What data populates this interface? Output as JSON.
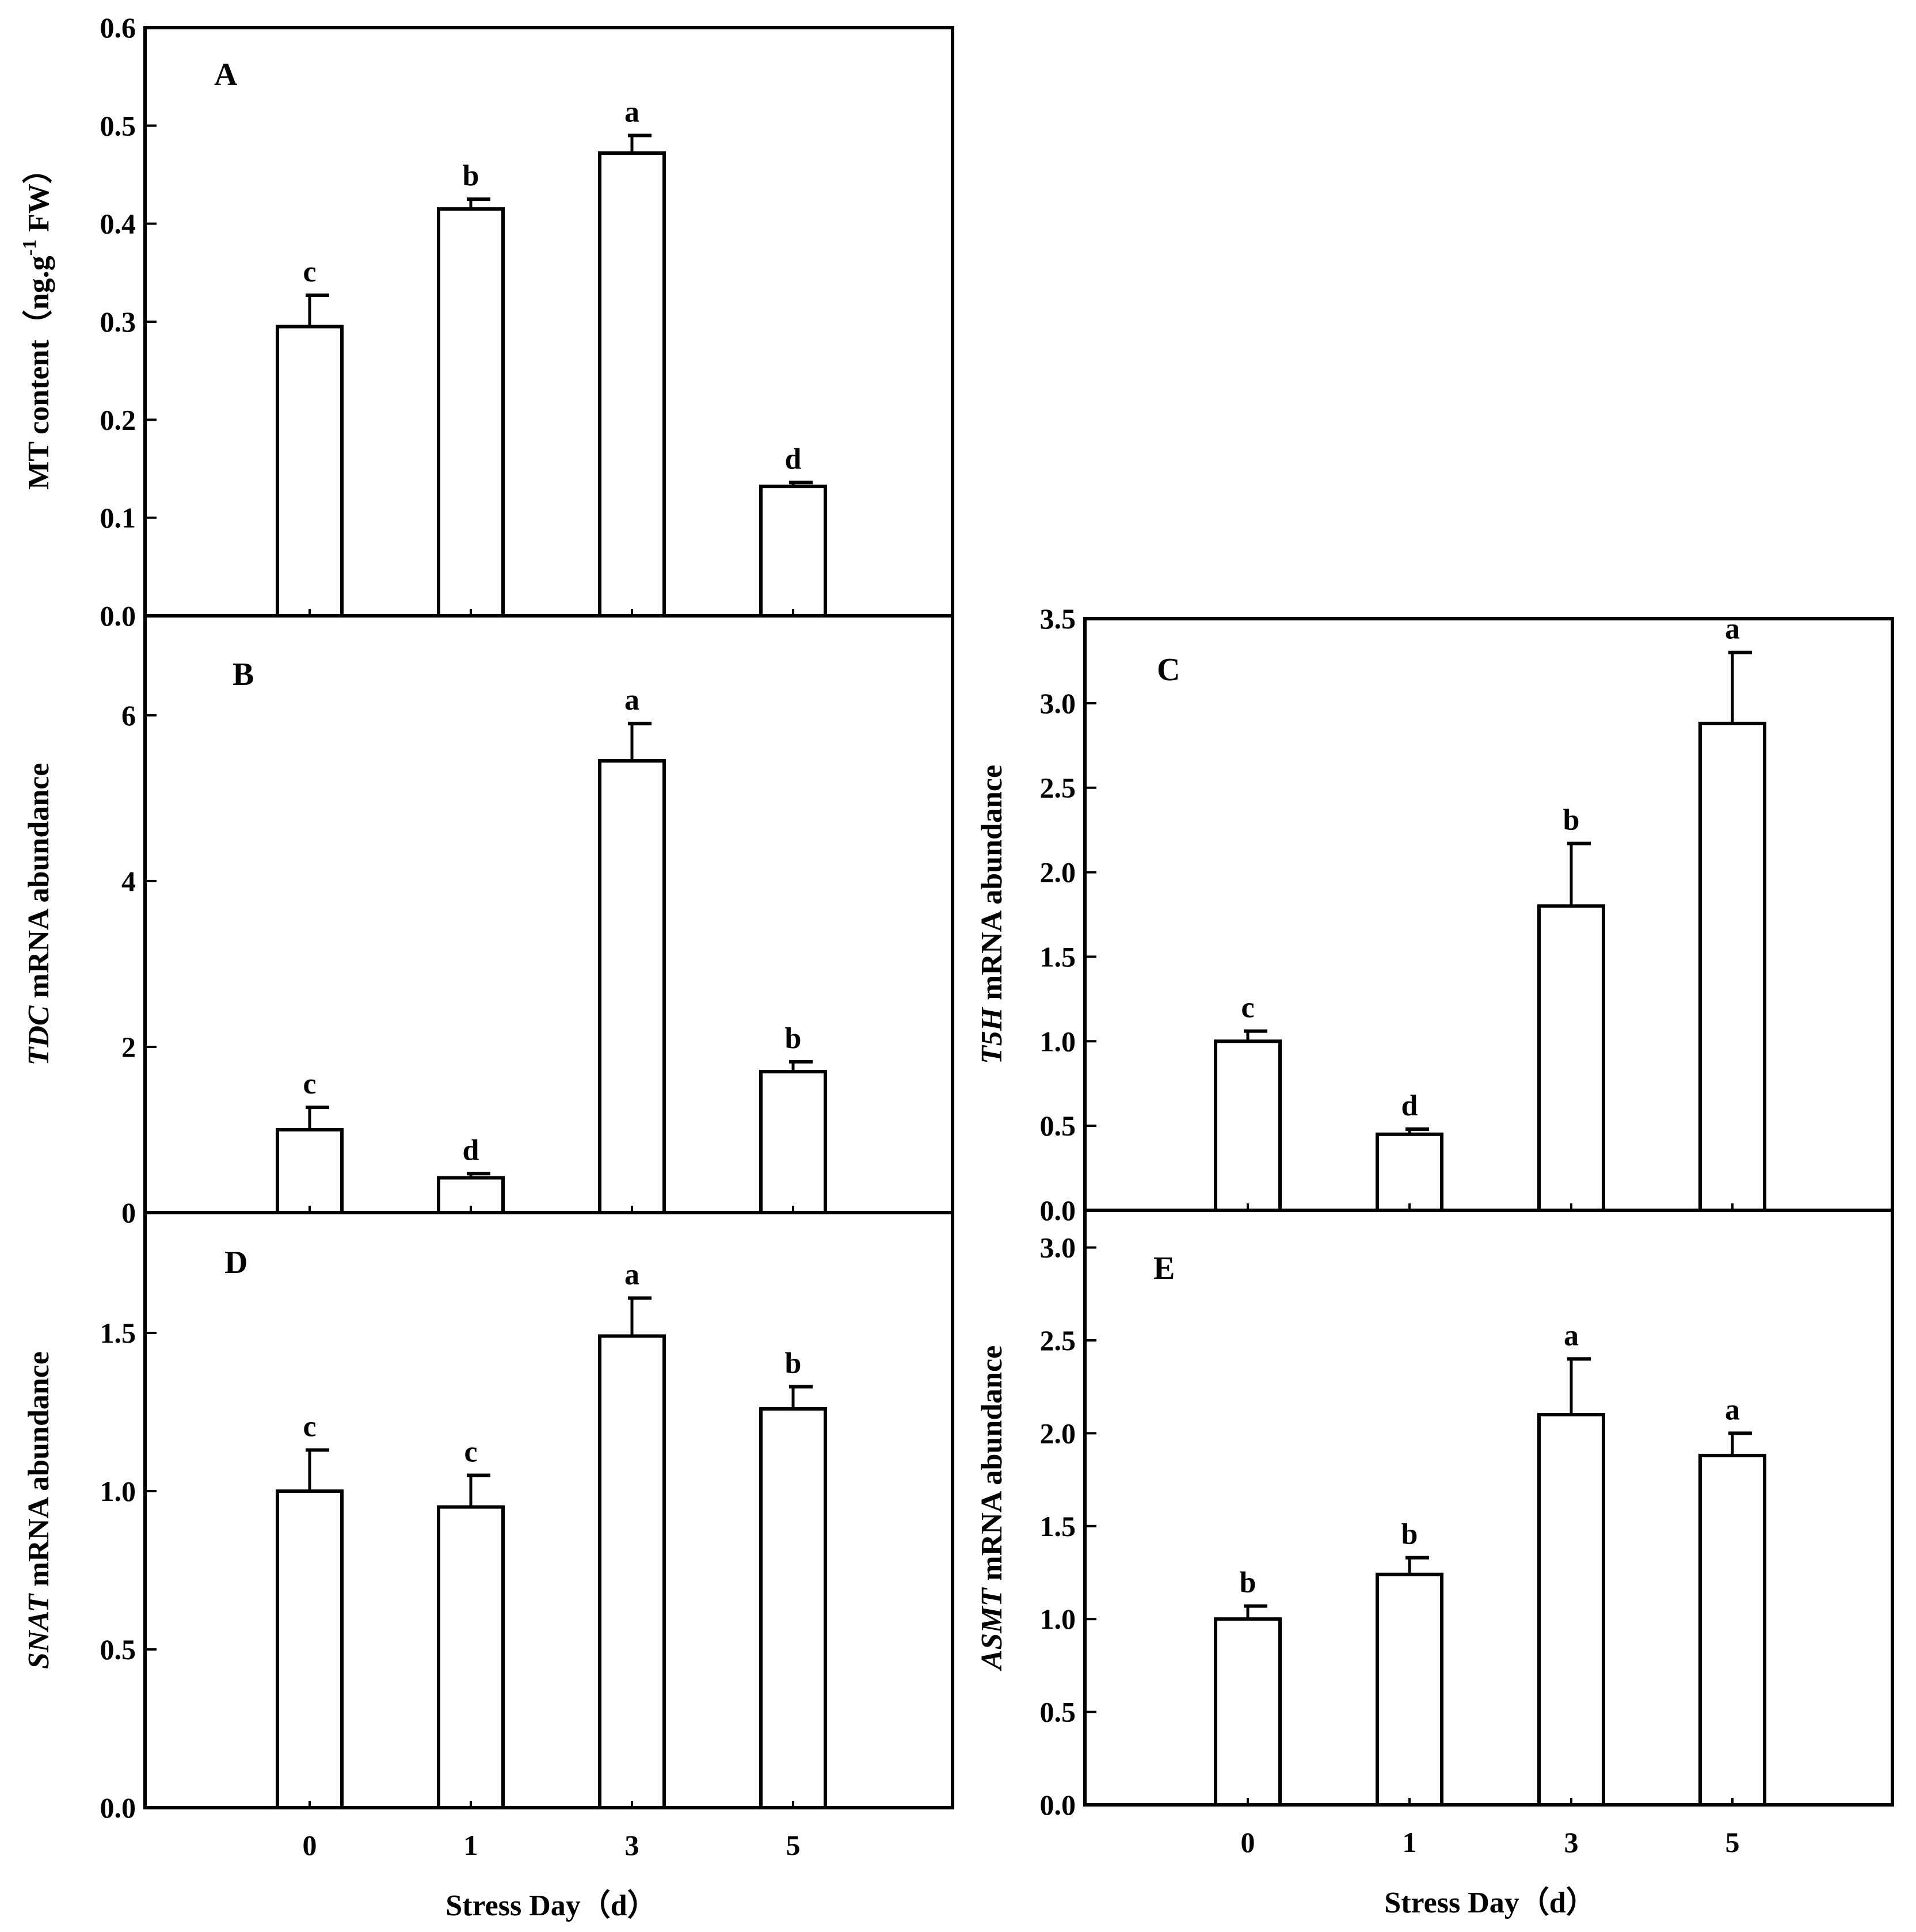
{
  "figure": {
    "x_axis_label": "Stress Day（d）",
    "x_tick_labels": [
      "0",
      "1",
      "3",
      "5"
    ]
  },
  "chart_data": [
    {
      "type": "bar",
      "panel": "A",
      "categories": [
        "0",
        "1",
        "3",
        "5"
      ],
      "values": [
        0.295,
        0.415,
        0.472,
        0.132
      ],
      "errors": [
        0.032,
        0.01,
        0.018,
        0.004
      ],
      "significance": [
        "c",
        "b",
        "a",
        "d"
      ],
      "ylabel": "MT content（ng.g",
      "ylabel_superscript": "-1",
      "ylabel_suffix": " FW）",
      "ylim": [
        0,
        0.6
      ],
      "yticks": [
        0.0,
        0.1,
        0.2,
        0.3,
        0.4,
        0.5,
        0.6
      ],
      "ytick_labels": [
        "0.0",
        "0.1",
        "0.2",
        "0.3",
        "0.4",
        "0.5",
        "0.6"
      ]
    },
    {
      "type": "bar",
      "panel": "B",
      "categories": [
        "0",
        "1",
        "3",
        "5"
      ],
      "values": [
        1.0,
        0.42,
        5.45,
        1.7
      ],
      "errors": [
        0.27,
        0.05,
        0.45,
        0.12
      ],
      "significance": [
        "c",
        "d",
        "a",
        "b"
      ],
      "ylabel_gene": "TDC",
      "ylabel_rest": " mRNA abundance",
      "ylim": [
        0,
        7.2
      ],
      "yticks": [
        0,
        2,
        4,
        6
      ],
      "ytick_labels": [
        "0",
        "2",
        "4",
        "6"
      ]
    },
    {
      "type": "bar",
      "panel": "C",
      "categories": [
        "0",
        "1",
        "3",
        "5"
      ],
      "values": [
        1.0,
        0.45,
        1.8,
        2.88
      ],
      "errors": [
        0.06,
        0.03,
        0.37,
        0.42
      ],
      "significance": [
        "c",
        "d",
        "b",
        "a"
      ],
      "ylabel_gene": "T5H",
      "ylabel_rest": " mRNA abundance",
      "ylim": [
        0,
        3.5
      ],
      "yticks": [
        0.0,
        0.5,
        1.0,
        1.5,
        2.0,
        2.5,
        3.0,
        3.5
      ],
      "ytick_labels": [
        "0.0",
        "0.5",
        "1.0",
        "1.5",
        "2.0",
        "2.5",
        "3.0",
        "3.5"
      ]
    },
    {
      "type": "bar",
      "panel": "D",
      "categories": [
        "0",
        "1",
        "3",
        "5"
      ],
      "values": [
        1.0,
        0.95,
        1.49,
        1.26
      ],
      "errors": [
        0.13,
        0.1,
        0.12,
        0.07
      ],
      "significance": [
        "c",
        "c",
        "a",
        "b"
      ],
      "ylabel_gene": "SNAT",
      "ylabel_rest": " mRNA abundance",
      "ylim": [
        0,
        1.88
      ],
      "yticks": [
        0.0,
        0.5,
        1.0,
        1.5
      ],
      "ytick_labels": [
        "0.0",
        "0.5",
        "1.0",
        "1.5"
      ]
    },
    {
      "type": "bar",
      "panel": "E",
      "categories": [
        "0",
        "1",
        "3",
        "5"
      ],
      "values": [
        1.0,
        1.24,
        2.1,
        1.88
      ],
      "errors": [
        0.07,
        0.09,
        0.3,
        0.12
      ],
      "significance": [
        "b",
        "b",
        "a",
        "a"
      ],
      "ylabel_gene": "ASMT",
      "ylabel_rest": " mRNA abundance",
      "ylim": [
        0,
        3.2
      ],
      "yticks": [
        0.0,
        0.5,
        1.0,
        1.5,
        2.0,
        2.5,
        3.0
      ],
      "ytick_labels": [
        "0.0",
        "0.5",
        "1.0",
        "1.5",
        "2.0",
        "2.5",
        "3.0"
      ]
    }
  ]
}
